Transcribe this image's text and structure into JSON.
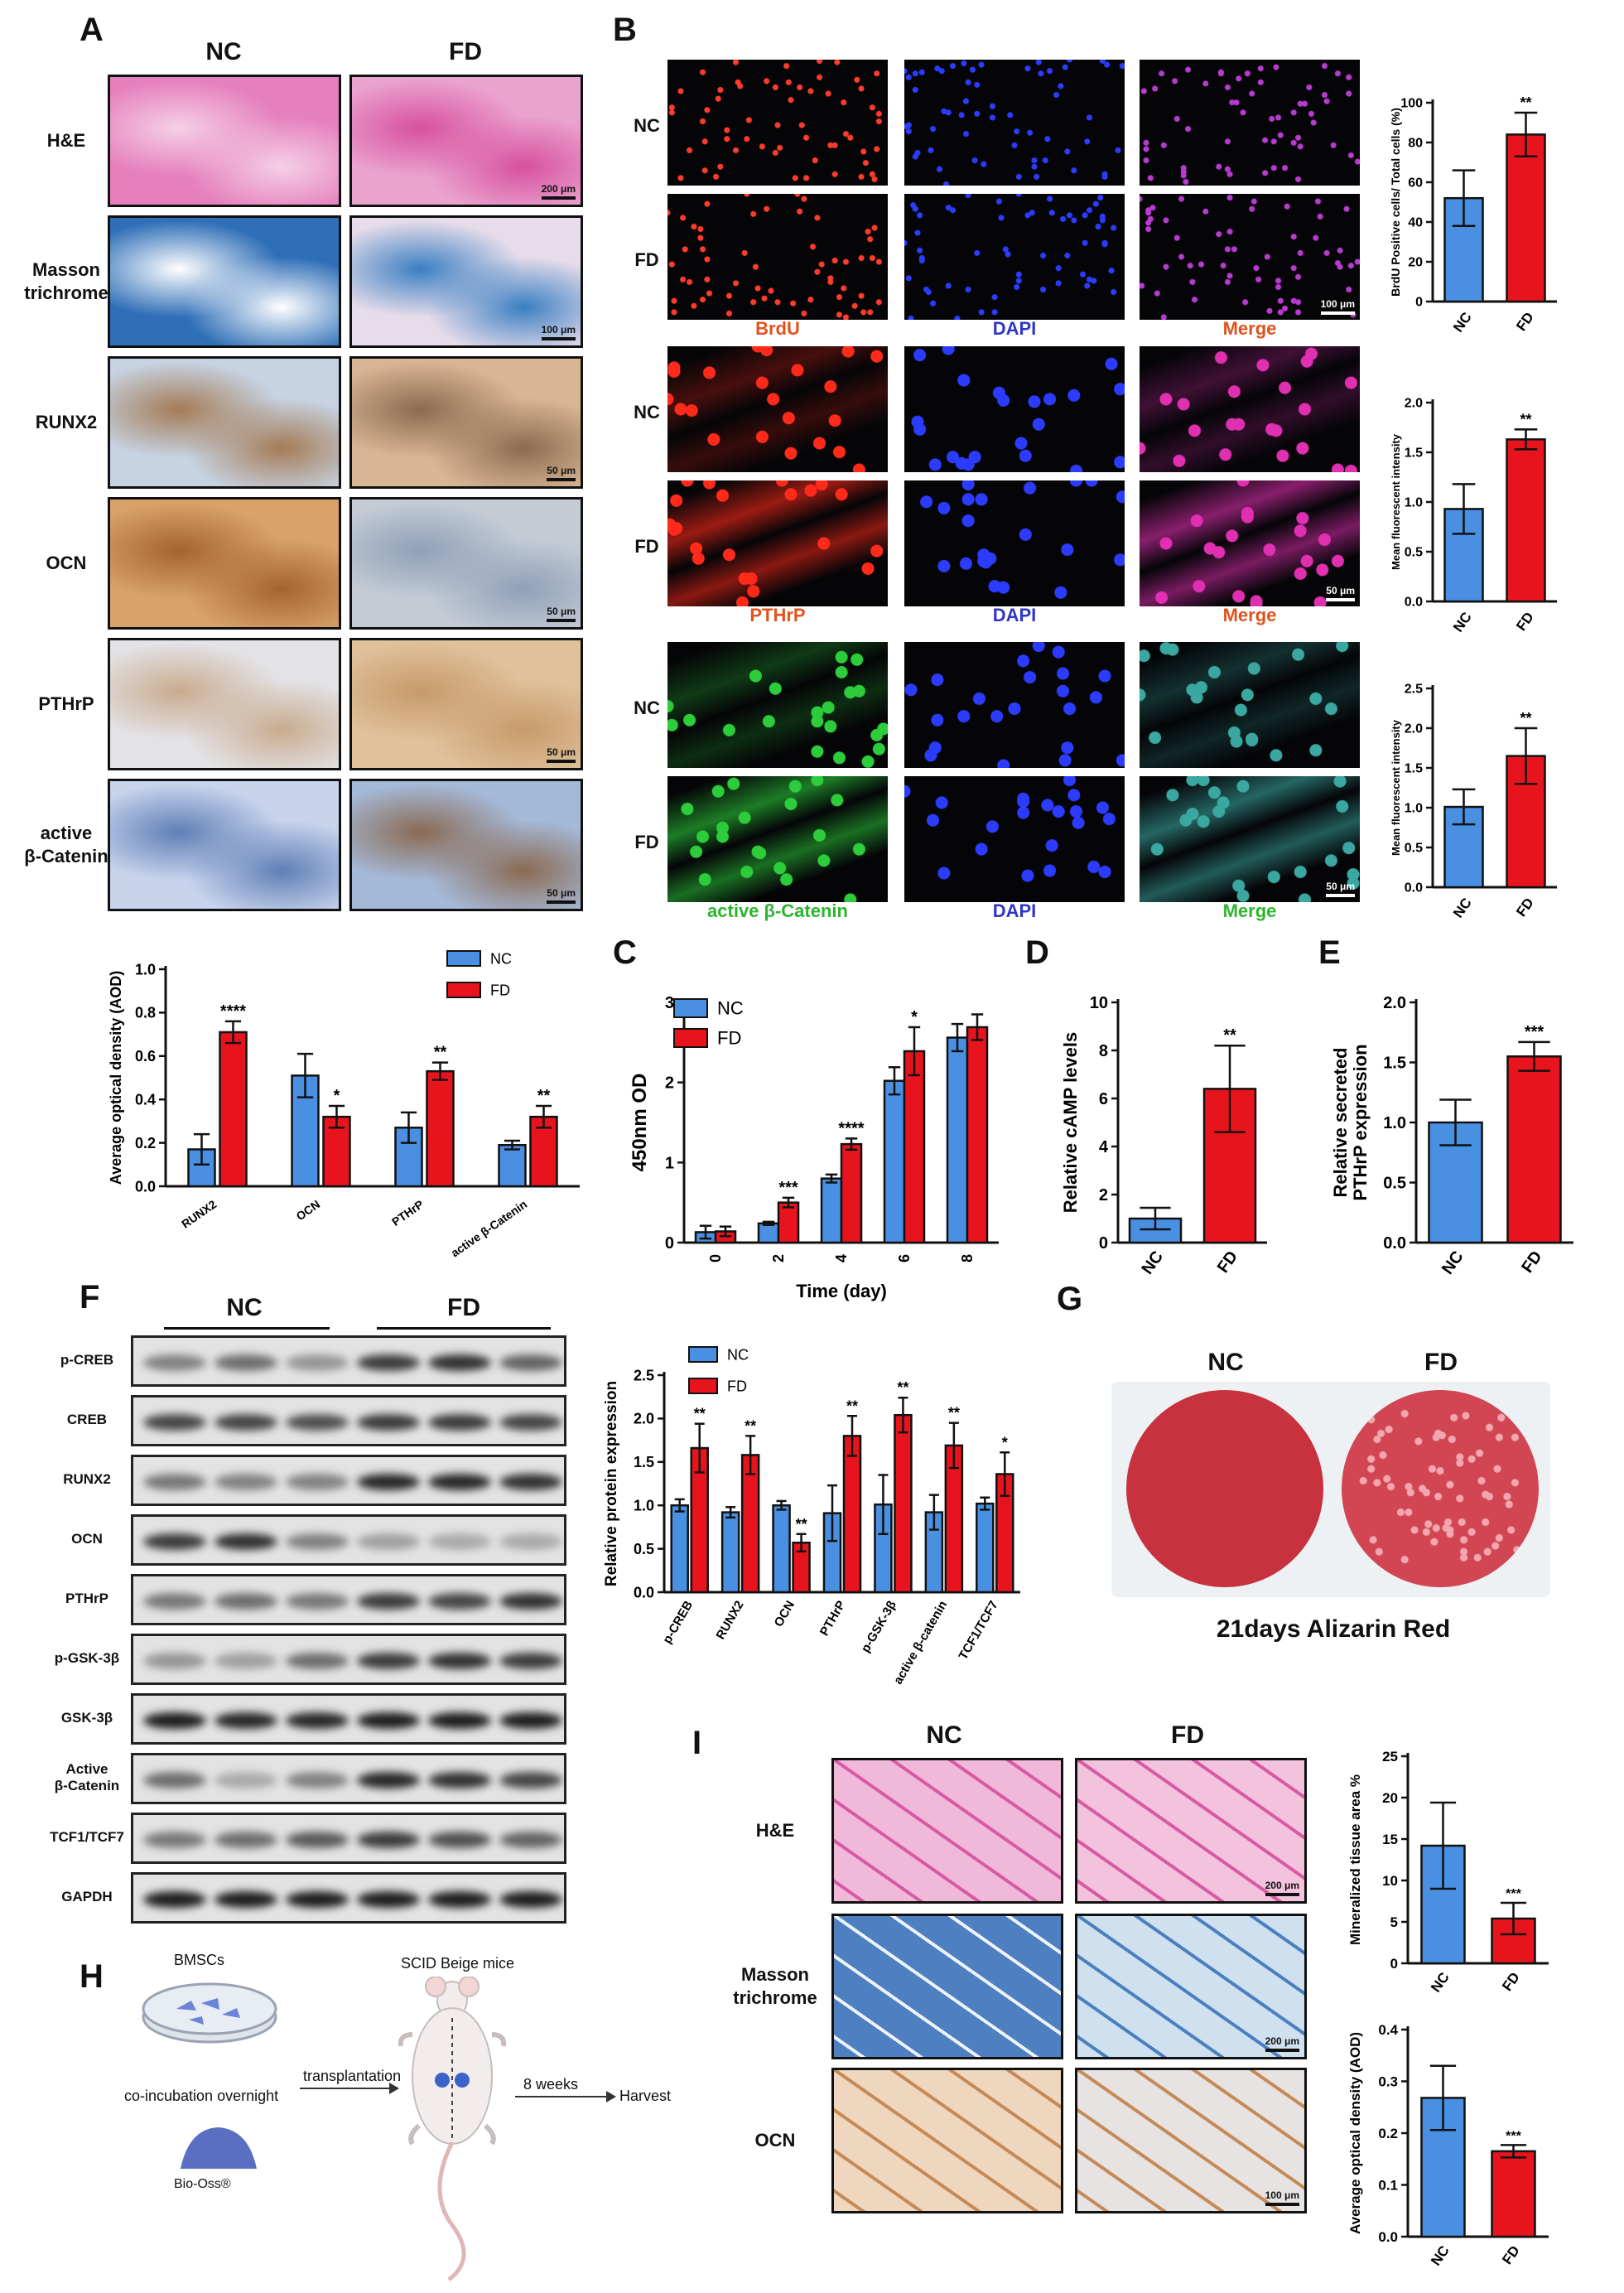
{
  "panels": {
    "A": {
      "letter": "A",
      "col_headers": [
        "NC",
        "FD"
      ],
      "rows": [
        {
          "label": "H&E",
          "scale": "200 μm",
          "colors": [
            "#e57fbd",
            "#eaa2cf"
          ],
          "accent": [
            "#f5d0e6",
            "#d7509e"
          ]
        },
        {
          "label": "Masson\ntrichrome",
          "scale": "100 μm",
          "colors": [
            "#2f6fb7",
            "#e6dcea"
          ],
          "accent": [
            "#ffffff",
            "#3a7fc2"
          ]
        },
        {
          "label": "RUNX2",
          "scale": "50 μm",
          "colors": [
            "#c7d3e3",
            "#d9b693"
          ],
          "accent": [
            "#a47b55",
            "#8a6a52"
          ]
        },
        {
          "label": "OCN",
          "scale": "50 μm",
          "colors": [
            "#d9a26b",
            "#c4cbd5"
          ],
          "accent": [
            "#a46430",
            "#8fa0b7"
          ]
        },
        {
          "label": "PTHrP",
          "scale": "50 μm",
          "colors": [
            "#e3e2e6",
            "#dfc19a"
          ],
          "accent": [
            "#c9ab8e",
            "#c79a6b"
          ]
        },
        {
          "label": "active\nβ-Catenin",
          "scale": "50 μm",
          "colors": [
            "#c8d4ec",
            "#a5b9d8"
          ],
          "accent": [
            "#5f7fb6",
            "#8a6a52"
          ]
        }
      ]
    },
    "B": {
      "letter": "B",
      "groups": [
        {
          "rows": [
            "NC",
            "FD"
          ],
          "channels": [
            "BrdU",
            "DAPI",
            "Merge"
          ],
          "channel_colors": [
            "#e0531e",
            "#2f35c7",
            "#e0531e"
          ],
          "scale": "100 μm",
          "stain": "#ff3b2a",
          "merge": "#b83ad0"
        },
        {
          "rows": [
            "NC",
            "FD"
          ],
          "channels": [
            "PTHrP",
            "DAPI",
            "Merge"
          ],
          "channel_colors": [
            "#e0531e",
            "#2f35c7",
            "#e0531e"
          ],
          "scale": "50 μm",
          "stain": "#ff2a1a",
          "merge": "#e02fb0"
        },
        {
          "rows": [
            "NC",
            "FD"
          ],
          "channels": [
            "active β-Catenin",
            "DAPI",
            "Merge"
          ],
          "channel_colors": [
            "#2db52d",
            "#2f35c7",
            "#2db52d"
          ],
          "scale": "50 μm",
          "stain": "#2ccc3a",
          "merge": "#3aa8a0"
        }
      ]
    },
    "C": {
      "letter": "C"
    },
    "D": {
      "letter": "D"
    },
    "E": {
      "letter": "E"
    },
    "F": {
      "letter": "F",
      "group_headers": [
        "NC",
        "FD"
      ],
      "rows": [
        "p-CREB",
        "CREB",
        "RUNX2",
        "OCN",
        "PTHrP",
        "p-GSK-3β",
        "GSK-3β",
        "Active\nβ-Catenin",
        "TCF1/TCF7",
        "GAPDH"
      ],
      "band_intensity": [
        [
          0.45,
          0.55,
          0.35,
          0.8,
          0.85,
          0.6
        ],
        [
          0.75,
          0.75,
          0.7,
          0.8,
          0.8,
          0.75
        ],
        [
          0.5,
          0.45,
          0.45,
          0.9,
          0.9,
          0.85
        ],
        [
          0.8,
          0.85,
          0.45,
          0.3,
          0.25,
          0.25
        ],
        [
          0.5,
          0.55,
          0.5,
          0.8,
          0.75,
          0.85
        ],
        [
          0.35,
          0.3,
          0.55,
          0.8,
          0.85,
          0.8
        ],
        [
          0.95,
          0.9,
          0.9,
          0.95,
          0.95,
          0.95
        ],
        [
          0.55,
          0.25,
          0.45,
          0.9,
          0.85,
          0.75
        ],
        [
          0.5,
          0.55,
          0.65,
          0.8,
          0.7,
          0.6
        ],
        [
          0.95,
          0.95,
          0.95,
          0.95,
          0.95,
          0.95
        ]
      ]
    },
    "G": {
      "letter": "G",
      "headers": [
        "NC",
        "FD"
      ],
      "caption": "21days Alizarin Red",
      "colors": {
        "nc": "#c8313e",
        "fd": "#d24654",
        "fd_spots": "#f2a6ae"
      }
    },
    "H": {
      "letter": "H",
      "bmscs": "BMSCs",
      "coincubation": "co-incubation overnight",
      "bio_oss": "Bio-Oss®",
      "transplantation": "transplantation",
      "mice": "SCID Beige mice",
      "weeks": "8 weeks",
      "harvest": "Harvest"
    },
    "I": {
      "letter": "I",
      "col_headers": [
        "NC",
        "FD"
      ],
      "rows": [
        {
          "label": "H&E",
          "scale": "200 μm",
          "colors": [
            "#f1b9d9",
            "#f3c2dd"
          ]
        },
        {
          "label": "Masson\ntrichrome",
          "scale": "200 μm",
          "colors": [
            "#4d7fc1",
            "#cfe0ee"
          ]
        },
        {
          "label": "OCN",
          "scale": "100 μm",
          "colors": [
            "#eed6bf",
            "#e7e3e3"
          ]
        }
      ]
    }
  },
  "colors": {
    "nc": "#4a90e2",
    "fd": "#e8141d"
  },
  "chart_data": [
    {
      "id": "A-bar",
      "type": "bar",
      "categories": [
        "RUNX2",
        "OCN",
        "PTHrP",
        "active β-Catenin"
      ],
      "series": [
        {
          "name": "NC",
          "values": [
            0.17,
            0.51,
            0.27,
            0.19
          ],
          "errors": [
            0.07,
            0.1,
            0.07,
            0.02
          ],
          "sig": [
            "",
            "",
            "",
            ""
          ]
        },
        {
          "name": "FD",
          "values": [
            0.71,
            0.32,
            0.53,
            0.32
          ],
          "errors": [
            0.05,
            0.05,
            0.04,
            0.05
          ],
          "sig": [
            "****",
            "*",
            "**",
            "**"
          ]
        }
      ],
      "ylabel": "Average optical density (AOD)",
      "ylim": [
        0,
        1.0
      ],
      "yticks": [
        0,
        0.2,
        0.4,
        0.6,
        0.8,
        1.0
      ],
      "ytick_labels": [
        "0.0",
        "0.2",
        "0.4",
        "0.6",
        "0.8",
        "1.0"
      ],
      "legend": "top-right"
    },
    {
      "id": "B-brdu",
      "type": "bar",
      "categories": [
        "NC",
        "FD"
      ],
      "values": [
        52,
        84
      ],
      "errors": [
        14,
        11
      ],
      "sig": [
        "",
        "**"
      ],
      "ylabel": "BrdU Positive cells/ Total cells (%)",
      "ylim": [
        0,
        100
      ],
      "yticks": [
        0,
        20,
        40,
        60,
        80,
        100
      ],
      "ytick_labels": [
        "0",
        "20",
        "40",
        "60",
        "80",
        "100"
      ]
    },
    {
      "id": "B-pthrp",
      "type": "bar",
      "categories": [
        "NC",
        "FD"
      ],
      "values": [
        0.93,
        1.63
      ],
      "errors": [
        0.25,
        0.1
      ],
      "sig": [
        "",
        "**"
      ],
      "ylabel": "Mean fluorescent intensity",
      "ylim": [
        0,
        2.0
      ],
      "yticks": [
        0,
        0.5,
        1.0,
        1.5,
        2.0
      ],
      "ytick_labels": [
        "0.0",
        "0.5",
        "1.0",
        "1.5",
        "2.0"
      ]
    },
    {
      "id": "B-catenin",
      "type": "bar",
      "categories": [
        "NC",
        "FD"
      ],
      "values": [
        1.01,
        1.65
      ],
      "errors": [
        0.22,
        0.35
      ],
      "sig": [
        "",
        "**"
      ],
      "ylabel": "Mean fluorescent intensity",
      "ylim": [
        0,
        2.5
      ],
      "yticks": [
        0,
        0.5,
        1.0,
        1.5,
        2.0,
        2.5
      ],
      "ytick_labels": [
        "0.0",
        "0.5",
        "1.0",
        "1.5",
        "2.0",
        "2.5"
      ]
    },
    {
      "id": "C",
      "type": "bar",
      "categories": [
        "0",
        "2",
        "4",
        "6",
        "8"
      ],
      "series": [
        {
          "name": "NC",
          "values": [
            0.13,
            0.24,
            0.8,
            2.02,
            2.56
          ],
          "errors": [
            0.08,
            0.02,
            0.05,
            0.17,
            0.17
          ],
          "sig": [
            "",
            "",
            "",
            "",
            ""
          ]
        },
        {
          "name": "FD",
          "values": [
            0.14,
            0.5,
            1.23,
            2.39,
            2.69
          ],
          "errors": [
            0.06,
            0.06,
            0.07,
            0.3,
            0.16
          ],
          "sig": [
            "",
            "***",
            "****",
            "*",
            ""
          ]
        }
      ],
      "xlabel": "Time (day)",
      "ylabel": "450nm OD",
      "ylim": [
        0,
        3
      ],
      "yticks": [
        0,
        1,
        2,
        3
      ],
      "ytick_labels": [
        "0",
        "1",
        "2",
        "3"
      ],
      "legend": "top-left"
    },
    {
      "id": "D",
      "type": "bar",
      "categories": [
        "NC",
        "FD"
      ],
      "values": [
        1.0,
        6.4
      ],
      "errors": [
        0.45,
        1.8
      ],
      "sig": [
        "",
        "**"
      ],
      "ylabel": "Relative cAMP levels",
      "ylim": [
        0,
        10
      ],
      "yticks": [
        0,
        2,
        4,
        6,
        8,
        10
      ],
      "ytick_labels": [
        "0",
        "2",
        "4",
        "6",
        "8",
        "10"
      ]
    },
    {
      "id": "E",
      "type": "bar",
      "categories": [
        "NC",
        "FD"
      ],
      "values": [
        1.0,
        1.55
      ],
      "errors": [
        0.19,
        0.12
      ],
      "sig": [
        "",
        "***"
      ],
      "ylabel": "Relative secreted\nPTHrP expression",
      "ylim": [
        0,
        2.0
      ],
      "yticks": [
        0,
        0.5,
        1.0,
        1.5,
        2.0
      ],
      "ytick_labels": [
        "0.0",
        "0.5",
        "1.0",
        "1.5",
        "2.0"
      ]
    },
    {
      "id": "F-bar",
      "type": "bar",
      "categories": [
        "p-CREB",
        "RUNX2",
        "OCN",
        "PTHrP",
        "p-GSK-3β",
        "active β-catenin",
        "TCF1/TCF7"
      ],
      "series": [
        {
          "name": "NC",
          "values": [
            1.0,
            0.92,
            1.0,
            0.91,
            1.01,
            0.92,
            1.02
          ],
          "errors": [
            0.07,
            0.06,
            0.05,
            0.32,
            0.34,
            0.2,
            0.07
          ],
          "sig": [
            "",
            "",
            "",
            "",
            "",
            "",
            ""
          ]
        },
        {
          "name": "FD",
          "values": [
            1.66,
            1.58,
            0.57,
            1.8,
            2.04,
            1.69,
            1.36
          ],
          "errors": [
            0.28,
            0.22,
            0.1,
            0.23,
            0.2,
            0.26,
            0.25
          ],
          "sig": [
            "**",
            "**",
            "**",
            "**",
            "**",
            "**",
            "*"
          ]
        }
      ],
      "ylabel": "Relative protein expression",
      "ylim": [
        0,
        2.5
      ],
      "yticks": [
        0,
        0.5,
        1.0,
        1.5,
        2.0,
        2.5
      ],
      "ytick_labels": [
        "0.0",
        "0.5",
        "1.0",
        "1.5",
        "2.0",
        "2.5"
      ],
      "legend": "top-left"
    },
    {
      "id": "I-mineral",
      "type": "bar",
      "categories": [
        "NC",
        "FD"
      ],
      "values": [
        14.2,
        5.4
      ],
      "errors": [
        5.2,
        1.9
      ],
      "sig": [
        "",
        "***"
      ],
      "ylabel": "Mineralized tissue area %",
      "ylim": [
        0,
        25
      ],
      "yticks": [
        0,
        5,
        10,
        15,
        20,
        25
      ],
      "ytick_labels": [
        "0",
        "5",
        "10",
        "15",
        "20",
        "25"
      ]
    },
    {
      "id": "I-aod",
      "type": "bar",
      "categories": [
        "NC",
        "FD"
      ],
      "values": [
        0.268,
        0.165
      ],
      "errors": [
        0.062,
        0.012
      ],
      "sig": [
        "",
        "***"
      ],
      "ylabel": "Average optical density (AOD)",
      "ylim": [
        0,
        0.4
      ],
      "yticks": [
        0,
        0.1,
        0.2,
        0.3,
        0.4
      ],
      "ytick_labels": [
        "0.0",
        "0.1",
        "0.2",
        "0.3",
        "0.4"
      ]
    }
  ]
}
